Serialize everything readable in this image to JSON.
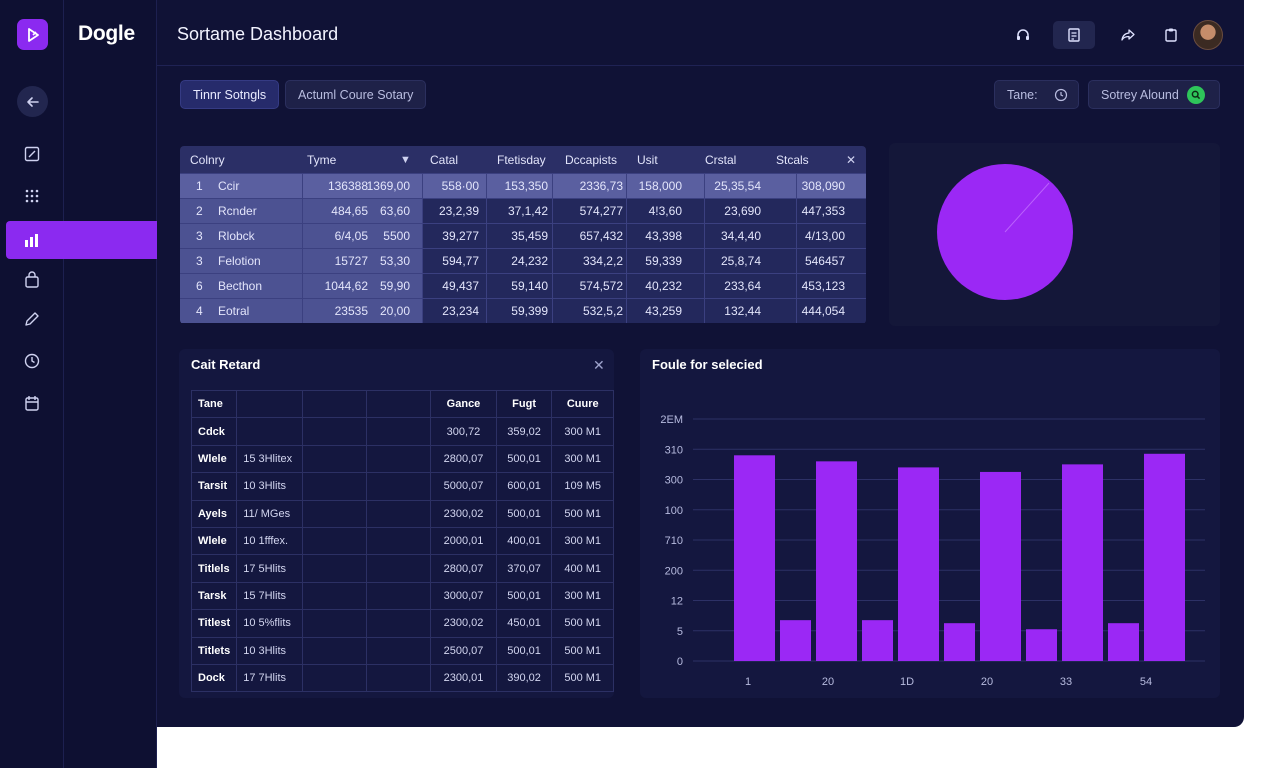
{
  "brand": {
    "name": "Dogle"
  },
  "header": {
    "title": "Sortame Dashboard"
  },
  "toolbar_icons": [
    "headset-icon",
    "report-icon",
    "share-icon",
    "clipboard-icon"
  ],
  "sidebar": {
    "items": [
      {
        "icon": "back-arrow-icon"
      },
      {
        "icon": "edit-square-icon"
      },
      {
        "icon": "grid-dots-icon"
      },
      {
        "icon": "analytics-icon",
        "active": true
      },
      {
        "icon": "bag-icon"
      },
      {
        "icon": "pen-icon"
      },
      {
        "icon": "clock-icon"
      },
      {
        "icon": "calendar-icon"
      }
    ]
  },
  "filters": {
    "tab1": "Tinnr Sotngls",
    "tab2": "Actuml Coure Sotary",
    "time_label": "Tane:",
    "survey_label": "Sotrey Alound"
  },
  "grid": {
    "columns": [
      "Colnry",
      "Tyme",
      "Catal",
      "Ftetisday",
      "Dccapists",
      "Usit",
      "Crstal",
      "Stcals"
    ],
    "rows": [
      [
        "1",
        "Ccir",
        "136388",
        "1369,00",
        "558·00",
        "153,350",
        "2336,73",
        "158,000",
        "25,35,54",
        "308,090"
      ],
      [
        "2",
        "Rcnder",
        "484,65",
        "63,60",
        "23,2,39",
        "37,1,42",
        "574,277",
        "4!3,60",
        "23,690",
        "447,353"
      ],
      [
        "3",
        "Rlobck",
        "6/4,05",
        "5500",
        "39,277",
        "35,459",
        "657,432",
        "43,398",
        "34,4,40",
        "4/13,00"
      ],
      [
        "3",
        "Felotion",
        "15727",
        "53,30",
        "594,77",
        "24,232",
        "334,2,2",
        "59,339",
        "25,8,74",
        "546457"
      ],
      [
        "6",
        "Becthon",
        "1044,62",
        "59,90",
        "49,437",
        "59,140",
        "574,572",
        "40,232",
        "233,64",
        "453,123"
      ],
      [
        "4",
        "Eotral",
        "23535",
        "20,00",
        "23,234",
        "59,399",
        "532,5,2",
        "43,259",
        "132,44",
        "444,054"
      ]
    ]
  },
  "records": {
    "title": "Cait Retard",
    "headers": [
      "Tane",
      "",
      "",
      "",
      "Gance",
      "Fugt",
      "Cuure"
    ],
    "rows": [
      [
        "Cdck",
        "",
        "300,72",
        "359,02",
        "300 M1"
      ],
      [
        "Wlele",
        "15 3Hlitex",
        "2800,07",
        "500,01",
        "300 M1"
      ],
      [
        "Tarsit",
        "10 3Hlits",
        "5000,07",
        "600,01",
        "109 M5"
      ],
      [
        "Ayels",
        "11/ MGes",
        "2300,02",
        "500,01",
        "500 M1"
      ],
      [
        "Wlele",
        "10 1fffex.",
        "2000,01",
        "400,01",
        "300 M1"
      ],
      [
        "Titlels",
        "17 5Hlits",
        "2800,07",
        "370,07",
        "400 M1"
      ],
      [
        "Tarsk",
        "15 7Hlits",
        "3000,07",
        "500,01",
        "300 M1"
      ],
      [
        "Titlest",
        "10 5%flits",
        "2300,02",
        "450,01",
        "500 M1"
      ],
      [
        "Titlets",
        "10 3Hlits",
        "2500,07",
        "500,01",
        "500 M1"
      ],
      [
        "Dock",
        "17 7Hlits",
        "2300,01",
        "390,02",
        "500 M1"
      ]
    ]
  },
  "chart_panel": {
    "title": "Foule for selecied"
  },
  "chart_data": {
    "type": "bar",
    "x_tick_labels": [
      "1",
      "20",
      "1D",
      "20",
      "33",
      "54"
    ],
    "y_tick_labels": [
      "0",
      "5",
      "12",
      "200",
      "710",
      "100",
      "300",
      "310",
      "2EM"
    ],
    "values": [
      6.8,
      1.35,
      6.6,
      1.35,
      6.4,
      1.25,
      6.25,
      1.05,
      6.5,
      1.25,
      6.85
    ],
    "ylim": [
      0,
      8
    ],
    "grid": true,
    "color": "#9b28f5"
  },
  "pie_data": {
    "type": "pie",
    "values": [
      100
    ],
    "color": "#9b28f5"
  },
  "colors": {
    "accent": "#8b2af0",
    "success": "#2ec55a",
    "background": "#101236"
  }
}
